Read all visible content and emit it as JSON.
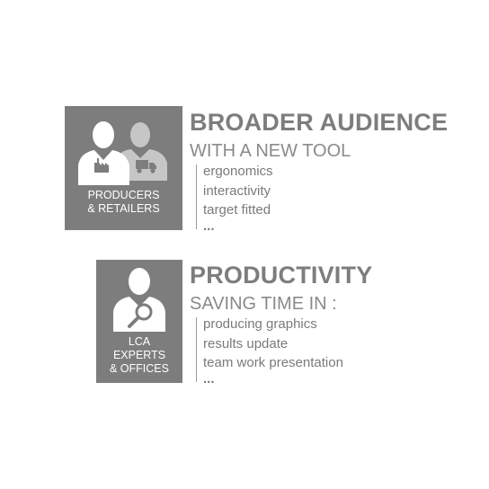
{
  "colors": {
    "tile_background": "#7d7d7d",
    "text_gray": "#7d7d7d",
    "icon_white": "#ffffff",
    "icon_light_gray": "#c6c6c6"
  },
  "icons": {
    "block1": [
      "person-factory-icon",
      "person-truck-icon"
    ],
    "block2": [
      "person-magnifier-icon"
    ]
  },
  "block1": {
    "tile_label": "PRODUCERS\n& RETAILERS",
    "heading": "BROADER AUDIENCE",
    "subheading": "WITH A NEW TOOL",
    "items": [
      "ergonomics",
      "interactivity",
      "target fitted",
      "..."
    ]
  },
  "block2": {
    "tile_label": "LCA\nEXPERTS\n& OFFICES",
    "heading": "PRODUCTIVITY",
    "subheading": "SAVING TIME IN :",
    "items": [
      "producing graphics",
      "results update",
      "team work presentation",
      "..."
    ]
  }
}
